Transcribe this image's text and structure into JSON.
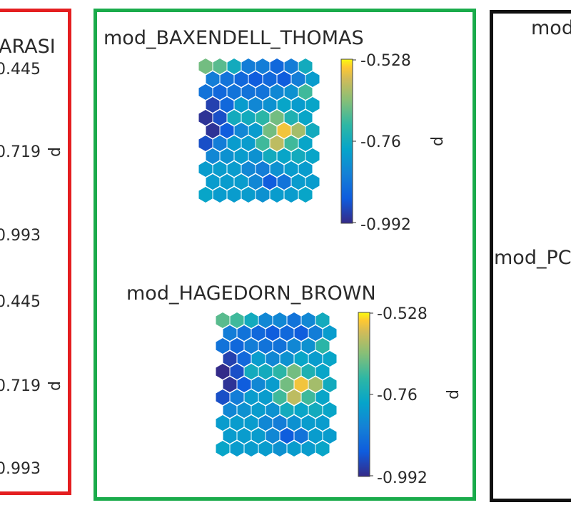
{
  "panels": {
    "left": {
      "border_color": "#e41e20",
      "title_fragment": "ARASI",
      "colorbars": [
        {
          "ticks": [
            "0.445",
            "0.719",
            "0.993"
          ],
          "axis_label": "d"
        },
        {
          "ticks": [
            "0.445",
            "0.719",
            "0.993"
          ],
          "axis_label": "d"
        }
      ]
    },
    "middle": {
      "border_color": "#1aab4b"
    },
    "right": {
      "border_color": "#111111",
      "title_fragments": [
        "mod",
        "mod_PC"
      ]
    }
  },
  "chart_data": [
    {
      "type": "heatmap",
      "subtype": "som-hexagonal",
      "title": "mod_BAXENDELL_THOMAS",
      "colorbar": {
        "label": "d",
        "min": -0.992,
        "max": -0.528,
        "ticks": [
          "-0.528",
          "-0.76",
          "-0.992"
        ],
        "colormap": "parula"
      },
      "grid": {
        "cols": 8,
        "rows": 11
      },
      "values": [
        [
          -0.66,
          -0.68,
          -0.76,
          -0.86,
          -0.86,
          -0.9,
          -0.86,
          -0.76
        ],
        [
          -0.86,
          -0.88,
          -0.9,
          -0.92,
          -0.9,
          -0.92,
          -0.86,
          -0.8
        ],
        [
          -0.88,
          -0.9,
          -0.88,
          -0.88,
          -0.88,
          -0.84,
          -0.82,
          -0.7
        ],
        [
          -0.96,
          -0.9,
          -0.8,
          -0.84,
          -0.82,
          -0.78,
          -0.8,
          -0.78
        ],
        [
          -0.98,
          -0.94,
          -0.76,
          -0.76,
          -0.72,
          -0.66,
          -0.74,
          -0.78
        ],
        [
          -0.98,
          -0.92,
          -0.84,
          -0.8,
          -0.66,
          -0.56,
          -0.62,
          -0.76
        ],
        [
          -0.94,
          -0.86,
          -0.8,
          -0.8,
          -0.7,
          -0.6,
          -0.7,
          -0.78
        ],
        [
          -0.84,
          -0.82,
          -0.8,
          -0.82,
          -0.76,
          -0.78,
          -0.76,
          -0.78
        ],
        [
          -0.8,
          -0.8,
          -0.8,
          -0.84,
          -0.86,
          -0.82,
          -0.8,
          -0.8
        ],
        [
          -0.8,
          -0.8,
          -0.8,
          -0.84,
          -0.92,
          -0.88,
          -0.8,
          -0.8
        ],
        [
          -0.78,
          -0.8,
          -0.8,
          -0.8,
          -0.82,
          -0.8,
          -0.8,
          -0.78
        ]
      ]
    },
    {
      "type": "heatmap",
      "subtype": "som-hexagonal",
      "title": "mod_HAGEDORN_BROWN",
      "colorbar": {
        "label": "d",
        "min": -0.992,
        "max": -0.528,
        "ticks": [
          "-0.528",
          "-0.76",
          "-0.992"
        ],
        "colormap": "parula"
      },
      "grid": {
        "cols": 8,
        "rows": 11
      },
      "values": [
        [
          -0.68,
          -0.7,
          -0.76,
          -0.84,
          -0.84,
          -0.88,
          -0.84,
          -0.76
        ],
        [
          -0.86,
          -0.88,
          -0.9,
          -0.92,
          -0.9,
          -0.92,
          -0.86,
          -0.8
        ],
        [
          -0.88,
          -0.9,
          -0.86,
          -0.88,
          -0.88,
          -0.84,
          -0.82,
          -0.72
        ],
        [
          -0.96,
          -0.9,
          -0.8,
          -0.84,
          -0.82,
          -0.78,
          -0.8,
          -0.78
        ],
        [
          -0.99,
          -0.94,
          -0.76,
          -0.76,
          -0.72,
          -0.66,
          -0.74,
          -0.78
        ],
        [
          -0.98,
          -0.92,
          -0.84,
          -0.8,
          -0.66,
          -0.56,
          -0.62,
          -0.76
        ],
        [
          -0.94,
          -0.86,
          -0.8,
          -0.8,
          -0.7,
          -0.6,
          -0.7,
          -0.78
        ],
        [
          -0.84,
          -0.82,
          -0.8,
          -0.82,
          -0.76,
          -0.78,
          -0.76,
          -0.78
        ],
        [
          -0.8,
          -0.8,
          -0.8,
          -0.84,
          -0.86,
          -0.82,
          -0.8,
          -0.8
        ],
        [
          -0.8,
          -0.8,
          -0.8,
          -0.84,
          -0.92,
          -0.88,
          -0.8,
          -0.8
        ],
        [
          -0.78,
          -0.8,
          -0.8,
          -0.8,
          -0.82,
          -0.8,
          -0.8,
          -0.78
        ]
      ]
    }
  ]
}
